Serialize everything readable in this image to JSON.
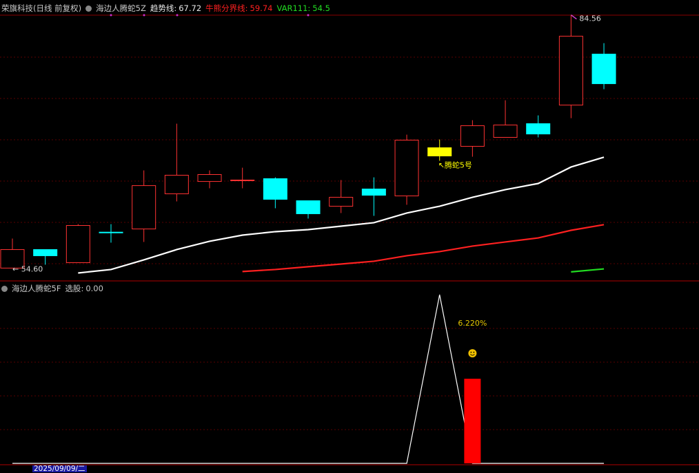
{
  "chart_data": [
    {
      "type": "candlestick",
      "title": "荣旗科技(日线 前复权)",
      "indicator": "海边人腾蛇5Z",
      "legend_separator": ":",
      "open": [
        54.6,
        56.79,
        55.24,
        58.85,
        59.23,
        63.39,
        64.85,
        65.02,
        65.18,
        62.57,
        61.92,
        63.96,
        63.14,
        67.87,
        69.01,
        70.07,
        71.69,
        73.89,
        79.92
      ],
      "close": [
        56.79,
        56.06,
        59.64,
        58.83,
        64.36,
        65.59,
        65.67,
        65.02,
        62.74,
        61.03,
        62.98,
        63.22,
        69.74,
        68.84,
        71.45,
        71.53,
        70.47,
        82.04,
        76.42
      ],
      "high": [
        58.09,
        56.79,
        59.8,
        59.8,
        66.16,
        71.69,
        66.16,
        66.48,
        65.34,
        62.57,
        65.02,
        65.34,
        70.39,
        69.82,
        72.1,
        74.46,
        72.67,
        84.56,
        81.22
      ],
      "low": [
        54.6,
        55.0,
        55.24,
        57.61,
        57.69,
        62.49,
        64.04,
        64.04,
        61.68,
        60.46,
        61.11,
        60.78,
        62.09,
        67.3,
        67.78,
        70.07,
        70.07,
        72.34,
        75.77
      ],
      "up_color": "#ff3232",
      "down_color": "#00ffff",
      "signal_color": "#ffff00",
      "series": [
        {
          "name": "趋势线",
          "color": "#ffffff",
          "values": [
            null,
            null,
            54.02,
            54.43,
            55.57,
            56.79,
            57.77,
            58.5,
            58.91,
            59.15,
            59.56,
            59.97,
            61.11,
            61.92,
            62.98,
            63.88,
            64.61,
            66.56,
            67.72
          ]
        },
        {
          "name": "牛熊分界线",
          "color": "#ff2020",
          "values": [
            null,
            null,
            null,
            null,
            null,
            null,
            null,
            54.19,
            54.43,
            54.76,
            55.08,
            55.41,
            56.06,
            56.55,
            57.2,
            57.69,
            58.17,
            59.07,
            59.74
          ]
        },
        {
          "name": "VAR111",
          "color": "#22dd22",
          "values": [
            null,
            null,
            null,
            null,
            null,
            null,
            null,
            null,
            null,
            null,
            null,
            null,
            null,
            null,
            null,
            null,
            null,
            54.15,
            54.5
          ]
        }
      ],
      "ylim": [
        53,
        86
      ],
      "annotations": {
        "low_label": "← 54.60",
        "signal_label": "↖腾蛇5号"
      }
    },
    {
      "type": "line",
      "title": "海边人腾蛇5F",
      "legend_separator": ":",
      "series": [
        {
          "name": "选股",
          "color": "#ffffff",
          "values": [
            0,
            0,
            0,
            0,
            0,
            0,
            0,
            0,
            0,
            0,
            0,
            0,
            0,
            1,
            0,
            0,
            0,
            0,
            0
          ],
          "header_value": {
            "value": 0,
            "label": "0.00"
          }
        }
      ],
      "bars": {
        "color": "#ff0000",
        "axis": "y2",
        "values": [
          null,
          null,
          null,
          null,
          null,
          null,
          null,
          null,
          null,
          null,
          null,
          null,
          null,
          null,
          6.22,
          null,
          null,
          null,
          null
        ],
        "value_labels": [
          null,
          null,
          null,
          null,
          null,
          null,
          null,
          null,
          null,
          null,
          null,
          null,
          null,
          null,
          "6.220%",
          null,
          null,
          null,
          null
        ]
      },
      "ylim": [
        0,
        1
      ],
      "y2lim": [
        0,
        12.4
      ],
      "x_label": "2025/09/09/二"
    }
  ]
}
